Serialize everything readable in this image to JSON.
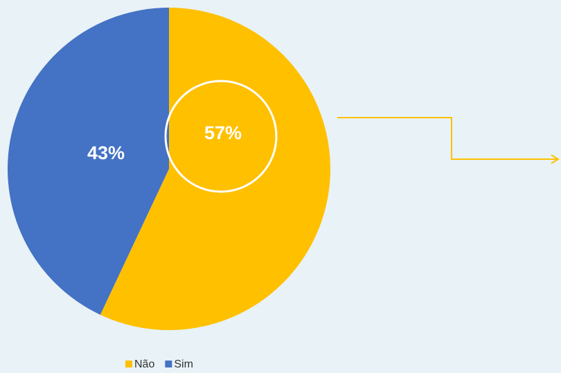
{
  "chart_data": {
    "type": "pie",
    "categories": [
      "Não",
      "Sim"
    ],
    "values": [
      57,
      43
    ],
    "value_labels": [
      "57%",
      "43%"
    ],
    "colors": [
      "#ffc000",
      "#4472c4"
    ],
    "legend": "bottom"
  }
}
